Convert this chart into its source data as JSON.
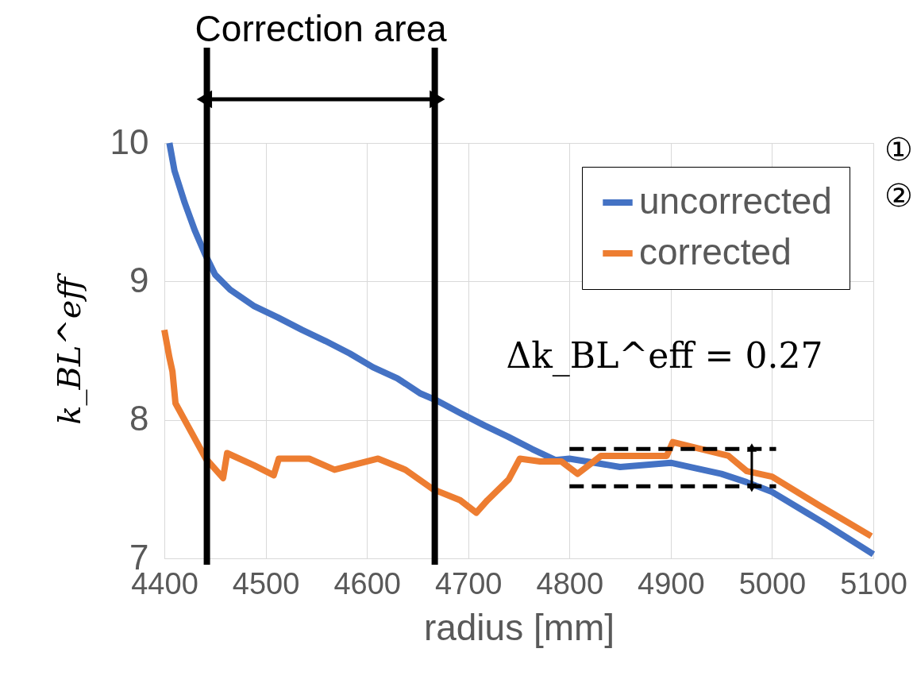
{
  "chart_data": {
    "type": "line",
    "xlabel": "radius [mm]",
    "ylabel": "k_BL^eff",
    "xlim": [
      4400,
      5100
    ],
    "xticks": [
      4400,
      4500,
      4600,
      4700,
      4800,
      4900,
      5000,
      5100
    ],
    "ylim": [
      7,
      10
    ],
    "yticks": [
      7,
      8,
      9,
      10
    ],
    "grid": true,
    "legend": "top right",
    "line_style": "solid",
    "series": [
      {
        "name": "uncorrected",
        "color": "#4472c4",
        "x": [
          4405,
          4410,
          4420,
          4430,
          4440,
          4450,
          4465,
          4489,
          4512,
          4536,
          4559,
          4583,
          4606,
          4630,
          4653,
          4669,
          4692,
          4716,
          4739,
          4763,
          4786,
          4800,
          4850,
          4900,
          4950,
          4975,
          5000,
          5050,
          5100
        ],
        "values": [
          10.0,
          9.8,
          9.57,
          9.37,
          9.2,
          9.05,
          8.94,
          8.82,
          8.74,
          8.65,
          8.57,
          8.48,
          8.38,
          8.3,
          8.19,
          8.14,
          8.05,
          7.96,
          7.88,
          7.79,
          7.71,
          7.72,
          7.66,
          7.69,
          7.61,
          7.55,
          7.48,
          7.26,
          7.03
        ]
      },
      {
        "name": "corrected",
        "color": "#ed7d31",
        "x": [
          4400,
          4405,
          4408,
          4411,
          4441,
          4458,
          4462,
          4489,
          4508,
          4513,
          4543,
          4568,
          4611,
          4638,
          4665,
          4692,
          4708,
          4719,
          4740,
          4751,
          4771,
          4792,
          4808,
          4831,
          4896,
          4902,
          4957,
          4975,
          5000,
          5047,
          5098
        ],
        "values": [
          8.65,
          8.45,
          8.35,
          8.12,
          7.72,
          7.58,
          7.76,
          7.67,
          7.6,
          7.72,
          7.72,
          7.64,
          7.72,
          7.64,
          7.5,
          7.42,
          7.33,
          7.42,
          7.57,
          7.72,
          7.7,
          7.7,
          7.61,
          7.74,
          7.74,
          7.84,
          7.74,
          7.63,
          7.59,
          7.38,
          7.16
        ]
      },
      {
        "color": "#000000",
        "line_style": "dashed",
        "x": [
          4800,
          5004
        ],
        "values": [
          7.79,
          7.79
        ]
      },
      {
        "color": "#000000",
        "line_style": "dashed",
        "x": [
          4800,
          5004
        ],
        "values": [
          7.52,
          7.52
        ]
      }
    ],
    "ref_lines": [
      {
        "axis": "x",
        "value": 4442,
        "color": "#000000"
      },
      {
        "axis": "x",
        "value": 4667,
        "color": "#000000"
      }
    ],
    "annotations": [
      "Correction area",
      "①",
      "②",
      {
        "text": "Δk_BL^eff = 0.27",
        "x": 4980,
        "y": 7.79
      }
    ]
  }
}
